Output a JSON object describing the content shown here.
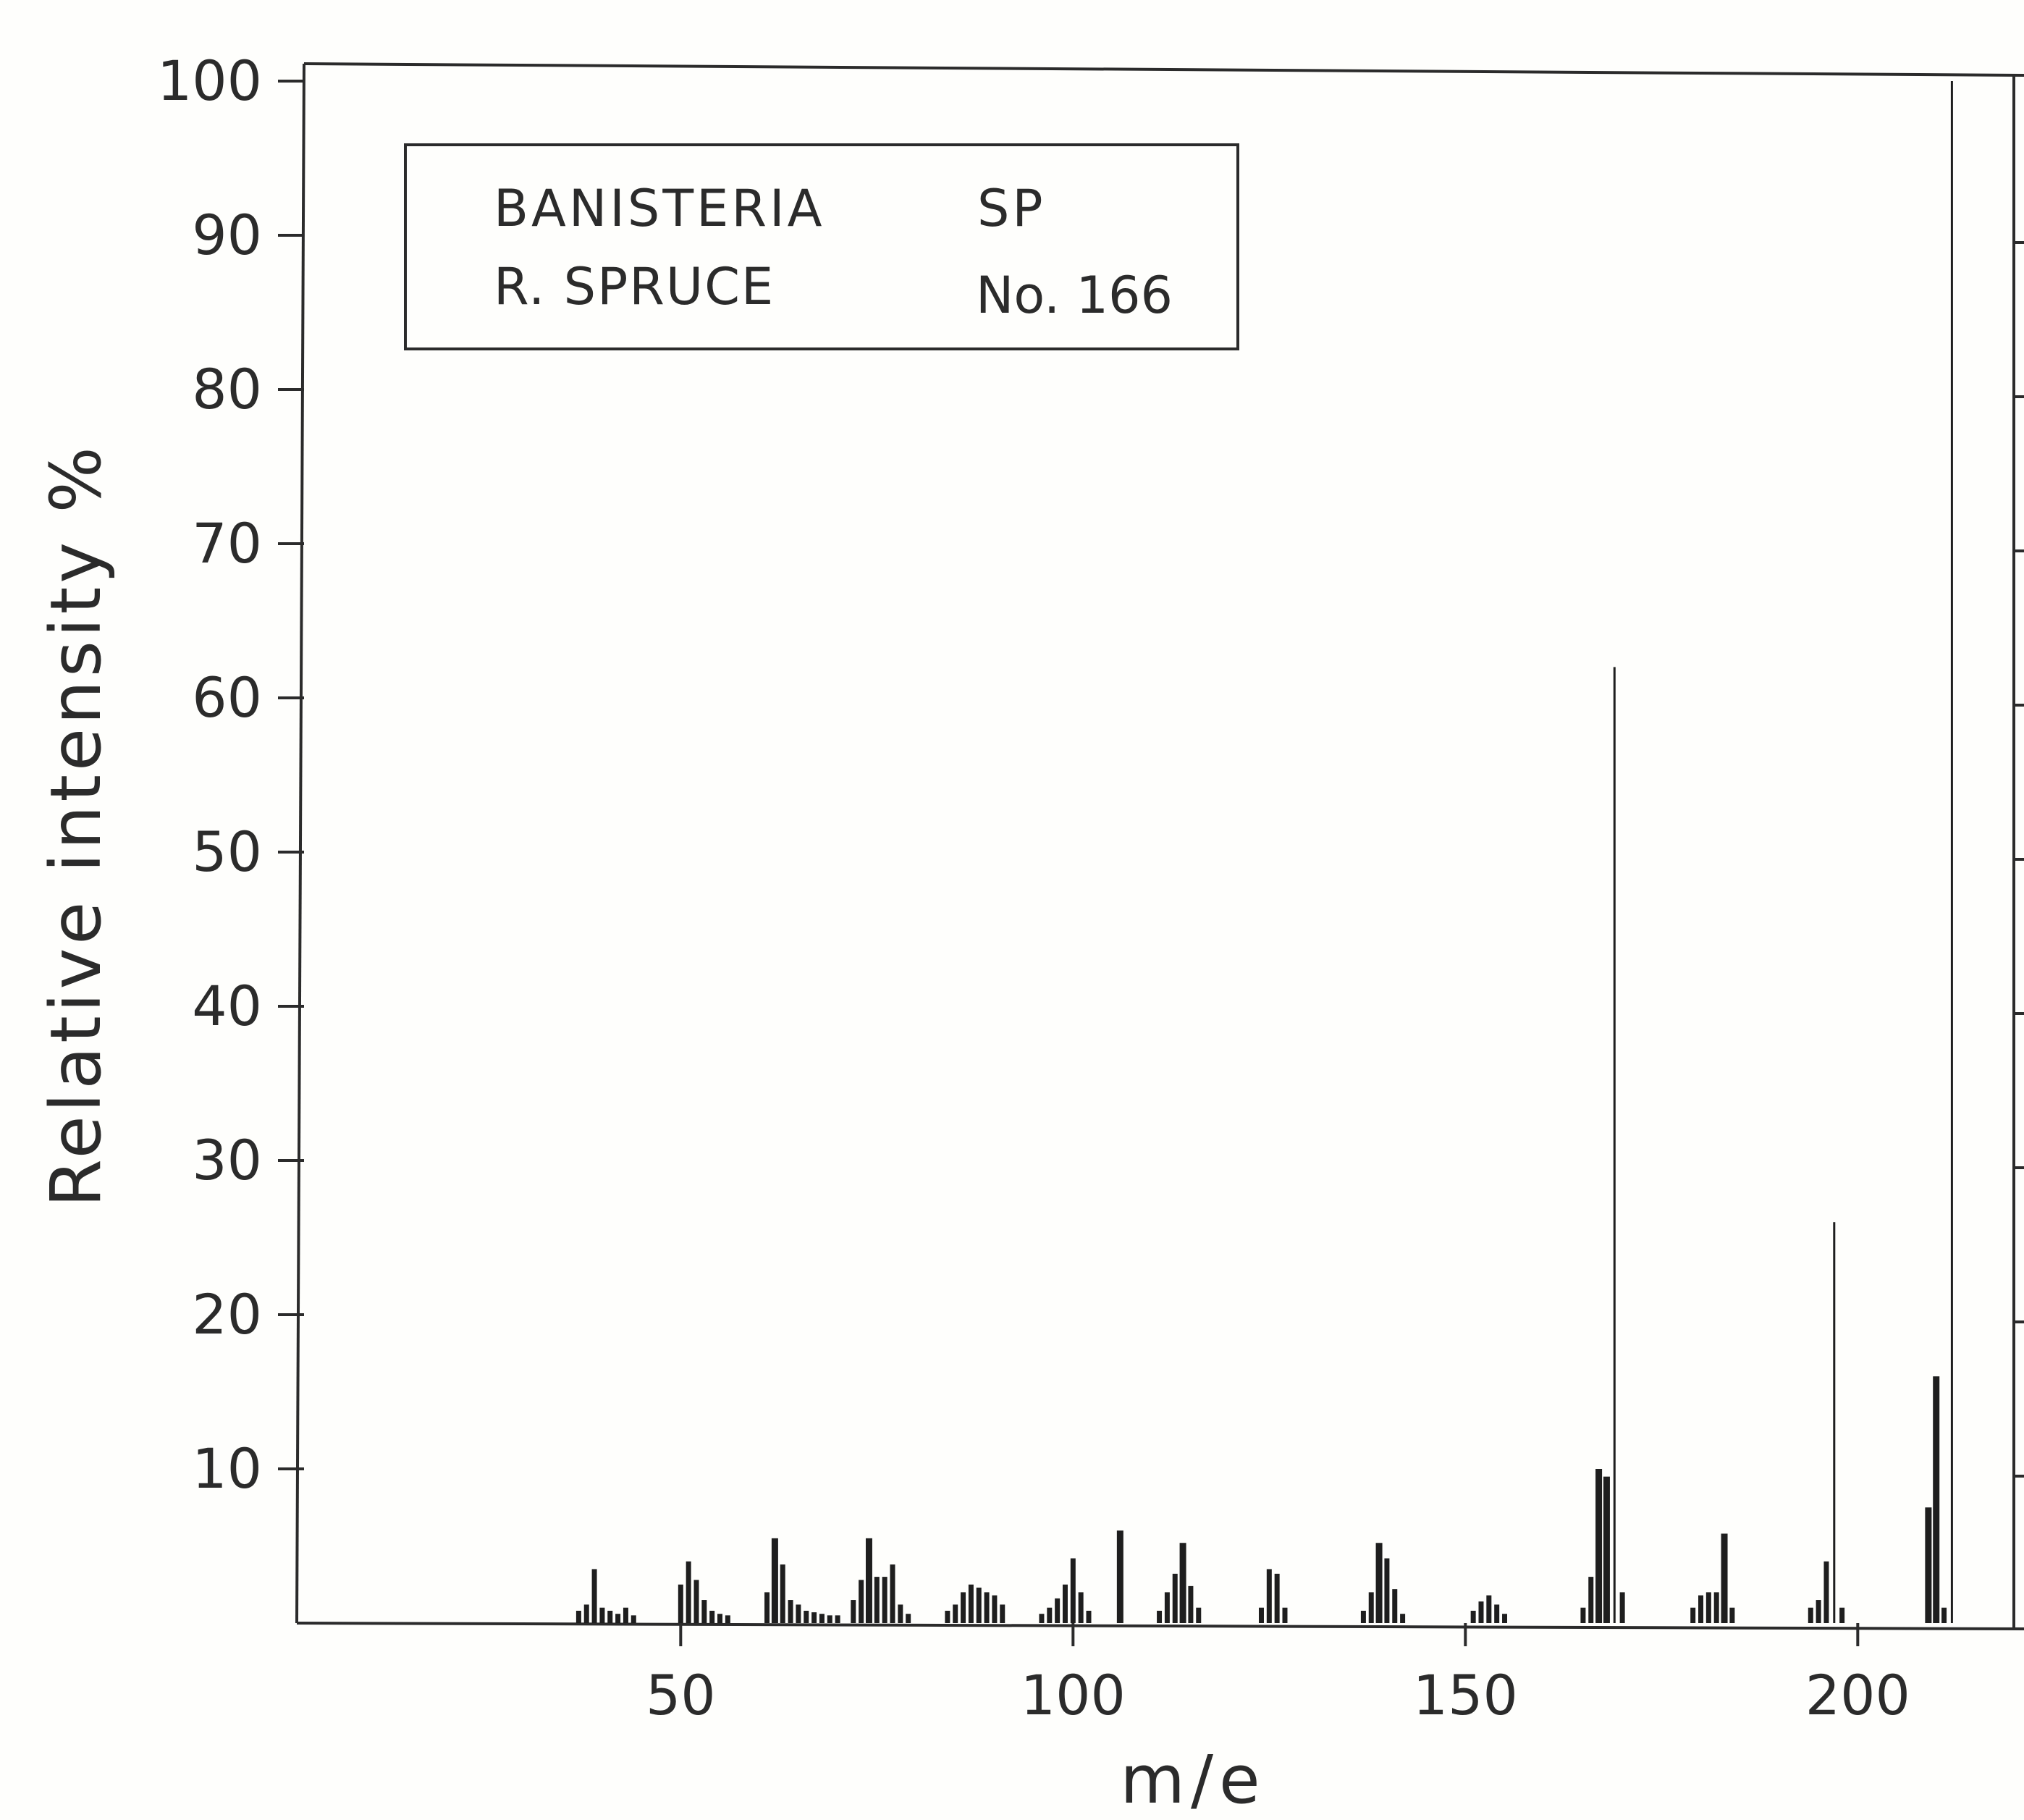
{
  "chart_data": {
    "type": "bar",
    "xlabel": "m/e",
    "ylabel": "Relative intensity %",
    "xlim": [
      0,
      226
    ],
    "ylim": [
      0,
      100
    ],
    "x_ticks": [
      {
        "value": 50,
        "label": "50"
      },
      {
        "value": 100,
        "label": "100"
      },
      {
        "value": 150,
        "label": "150"
      },
      {
        "value": 200,
        "label": "200"
      }
    ],
    "y_ticks": [
      {
        "value": 10,
        "label": "10"
      },
      {
        "value": 20,
        "label": "20"
      },
      {
        "value": 30,
        "label": "30"
      },
      {
        "value": 40,
        "label": "40"
      },
      {
        "value": 50,
        "label": "50"
      },
      {
        "value": 60,
        "label": "60"
      },
      {
        "value": 70,
        "label": "70"
      },
      {
        "value": 80,
        "label": "80"
      },
      {
        "value": 90,
        "label": "90"
      },
      {
        "value": 100,
        "label": "100"
      }
    ],
    "legend_box": {
      "line1_left": "BANISTERIA",
      "line1_right": "SP",
      "line2_left": "R. SPRUCE",
      "line2_right": "No. 166"
    },
    "peaks": [
      [
        37,
        0.8
      ],
      [
        38,
        1.2
      ],
      [
        39,
        3.5
      ],
      [
        40,
        1.0
      ],
      [
        41,
        0.8
      ],
      [
        42,
        0.6
      ],
      [
        43,
        1.0
      ],
      [
        44,
        0.5
      ],
      [
        50,
        2.5
      ],
      [
        51,
        4.0
      ],
      [
        52,
        2.8
      ],
      [
        53,
        1.5
      ],
      [
        54,
        0.8
      ],
      [
        55,
        0.6
      ],
      [
        56,
        0.5
      ],
      [
        61,
        2.0
      ],
      [
        62,
        5.5
      ],
      [
        63,
        3.8
      ],
      [
        64,
        1.5
      ],
      [
        65,
        1.2
      ],
      [
        66,
        0.8
      ],
      [
        67,
        0.7
      ],
      [
        68,
        0.6
      ],
      [
        69,
        0.5
      ],
      [
        70,
        0.5
      ],
      [
        72,
        1.5
      ],
      [
        73,
        2.8
      ],
      [
        74,
        5.5
      ],
      [
        75,
        3.0
      ],
      [
        76,
        3.0
      ],
      [
        77,
        3.8
      ],
      [
        78,
        1.2
      ],
      [
        79,
        0.6
      ],
      [
        84,
        0.8
      ],
      [
        85,
        1.2
      ],
      [
        86,
        2.0
      ],
      [
        87,
        2.5
      ],
      [
        88,
        2.3
      ],
      [
        89,
        2.0
      ],
      [
        90,
        1.8
      ],
      [
        91,
        1.2
      ],
      [
        96,
        0.6
      ],
      [
        97,
        1.0
      ],
      [
        98,
        1.6
      ],
      [
        99,
        2.5
      ],
      [
        100,
        4.2
      ],
      [
        101,
        2.0
      ],
      [
        102,
        0.8
      ],
      [
        106,
        6.0
      ],
      [
        111,
        0.8
      ],
      [
        112,
        2.0
      ],
      [
        113,
        3.2
      ],
      [
        114,
        5.2
      ],
      [
        115,
        2.4
      ],
      [
        116,
        1.0
      ],
      [
        124,
        1.0
      ],
      [
        125,
        3.5
      ],
      [
        126,
        3.2
      ],
      [
        127,
        1.0
      ],
      [
        137,
        0.8
      ],
      [
        138,
        2.0
      ],
      [
        139,
        5.2
      ],
      [
        140,
        4.2
      ],
      [
        141,
        2.2
      ],
      [
        142,
        0.6
      ],
      [
        151,
        0.8
      ],
      [
        152,
        1.4
      ],
      [
        153,
        1.8
      ],
      [
        154,
        1.2
      ],
      [
        155,
        0.6
      ],
      [
        165,
        1.0
      ],
      [
        166,
        3.0
      ],
      [
        167,
        10.0
      ],
      [
        168,
        9.5
      ],
      [
        169,
        62.0
      ],
      [
        170,
        2.0
      ],
      [
        179,
        1.0
      ],
      [
        180,
        1.8
      ],
      [
        181,
        2.0
      ],
      [
        182,
        2.0
      ],
      [
        183,
        5.8
      ],
      [
        184,
        1.0
      ],
      [
        194,
        1.0
      ],
      [
        195,
        1.5
      ],
      [
        196,
        4.0
      ],
      [
        197,
        26.0
      ],
      [
        198,
        1.0
      ],
      [
        209,
        7.5
      ],
      [
        210,
        16.0
      ],
      [
        211,
        1.0
      ],
      [
        212,
        100.0
      ]
    ],
    "grid": false
  }
}
